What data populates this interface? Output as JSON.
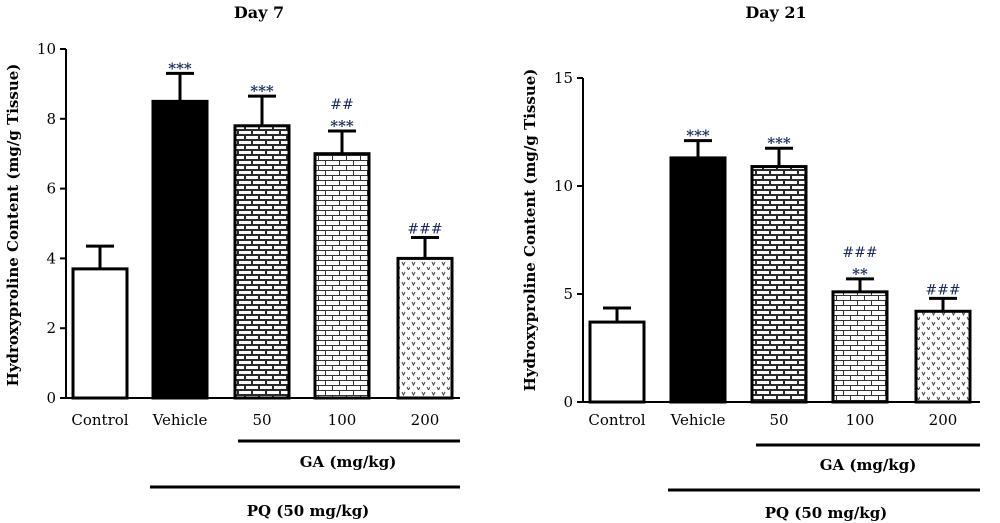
{
  "chart_data": [
    {
      "type": "bar",
      "title": "Day 7",
      "ylabel": "Hydroxyproline Content (mg/g Tissue)",
      "ylim": [
        0,
        10
      ],
      "yticks": [
        0,
        2,
        4,
        6,
        8,
        10
      ],
      "categories": [
        "Control",
        "Vehicle",
        "50",
        "100",
        "200"
      ],
      "values": [
        3.7,
        8.5,
        7.8,
        7.0,
        4.0
      ],
      "errors": [
        0.65,
        0.8,
        0.85,
        0.65,
        0.6
      ],
      "patterns": [
        "white",
        "black",
        "brick",
        "brick-light",
        "dots"
      ],
      "annotations": [
        {
          "index": 1,
          "stars": "***",
          "hashes": ""
        },
        {
          "index": 2,
          "stars": "***",
          "hashes": ""
        },
        {
          "index": 3,
          "stars": "***",
          "hashes": "##"
        },
        {
          "index": 4,
          "stars": "",
          "hashes": "###"
        }
      ],
      "group_labels": {
        "ga": "GA (mg/kg)",
        "pq": "PQ (50 mg/kg)"
      }
    },
    {
      "type": "bar",
      "title": "Day 21",
      "ylabel": "Hydroxyproline Content (mg/g Tissue)",
      "ylim": [
        0,
        15
      ],
      "yticks": [
        0,
        5,
        10,
        15
      ],
      "categories": [
        "Control",
        "Vehicle",
        "50",
        "100",
        "200"
      ],
      "values": [
        3.7,
        11.3,
        10.9,
        5.1,
        4.2
      ],
      "errors": [
        0.65,
        0.8,
        0.85,
        0.6,
        0.6
      ],
      "patterns": [
        "white",
        "black",
        "brick",
        "brick-light",
        "dots"
      ],
      "annotations": [
        {
          "index": 1,
          "stars": "***",
          "hashes": ""
        },
        {
          "index": 2,
          "stars": "***",
          "hashes": ""
        },
        {
          "index": 3,
          "stars": "**",
          "hashes": "###"
        },
        {
          "index": 4,
          "stars": "",
          "hashes": "###"
        }
      ],
      "group_labels": {
        "ga": "GA (mg/kg)",
        "pq": "PQ (50 mg/kg)"
      }
    }
  ]
}
